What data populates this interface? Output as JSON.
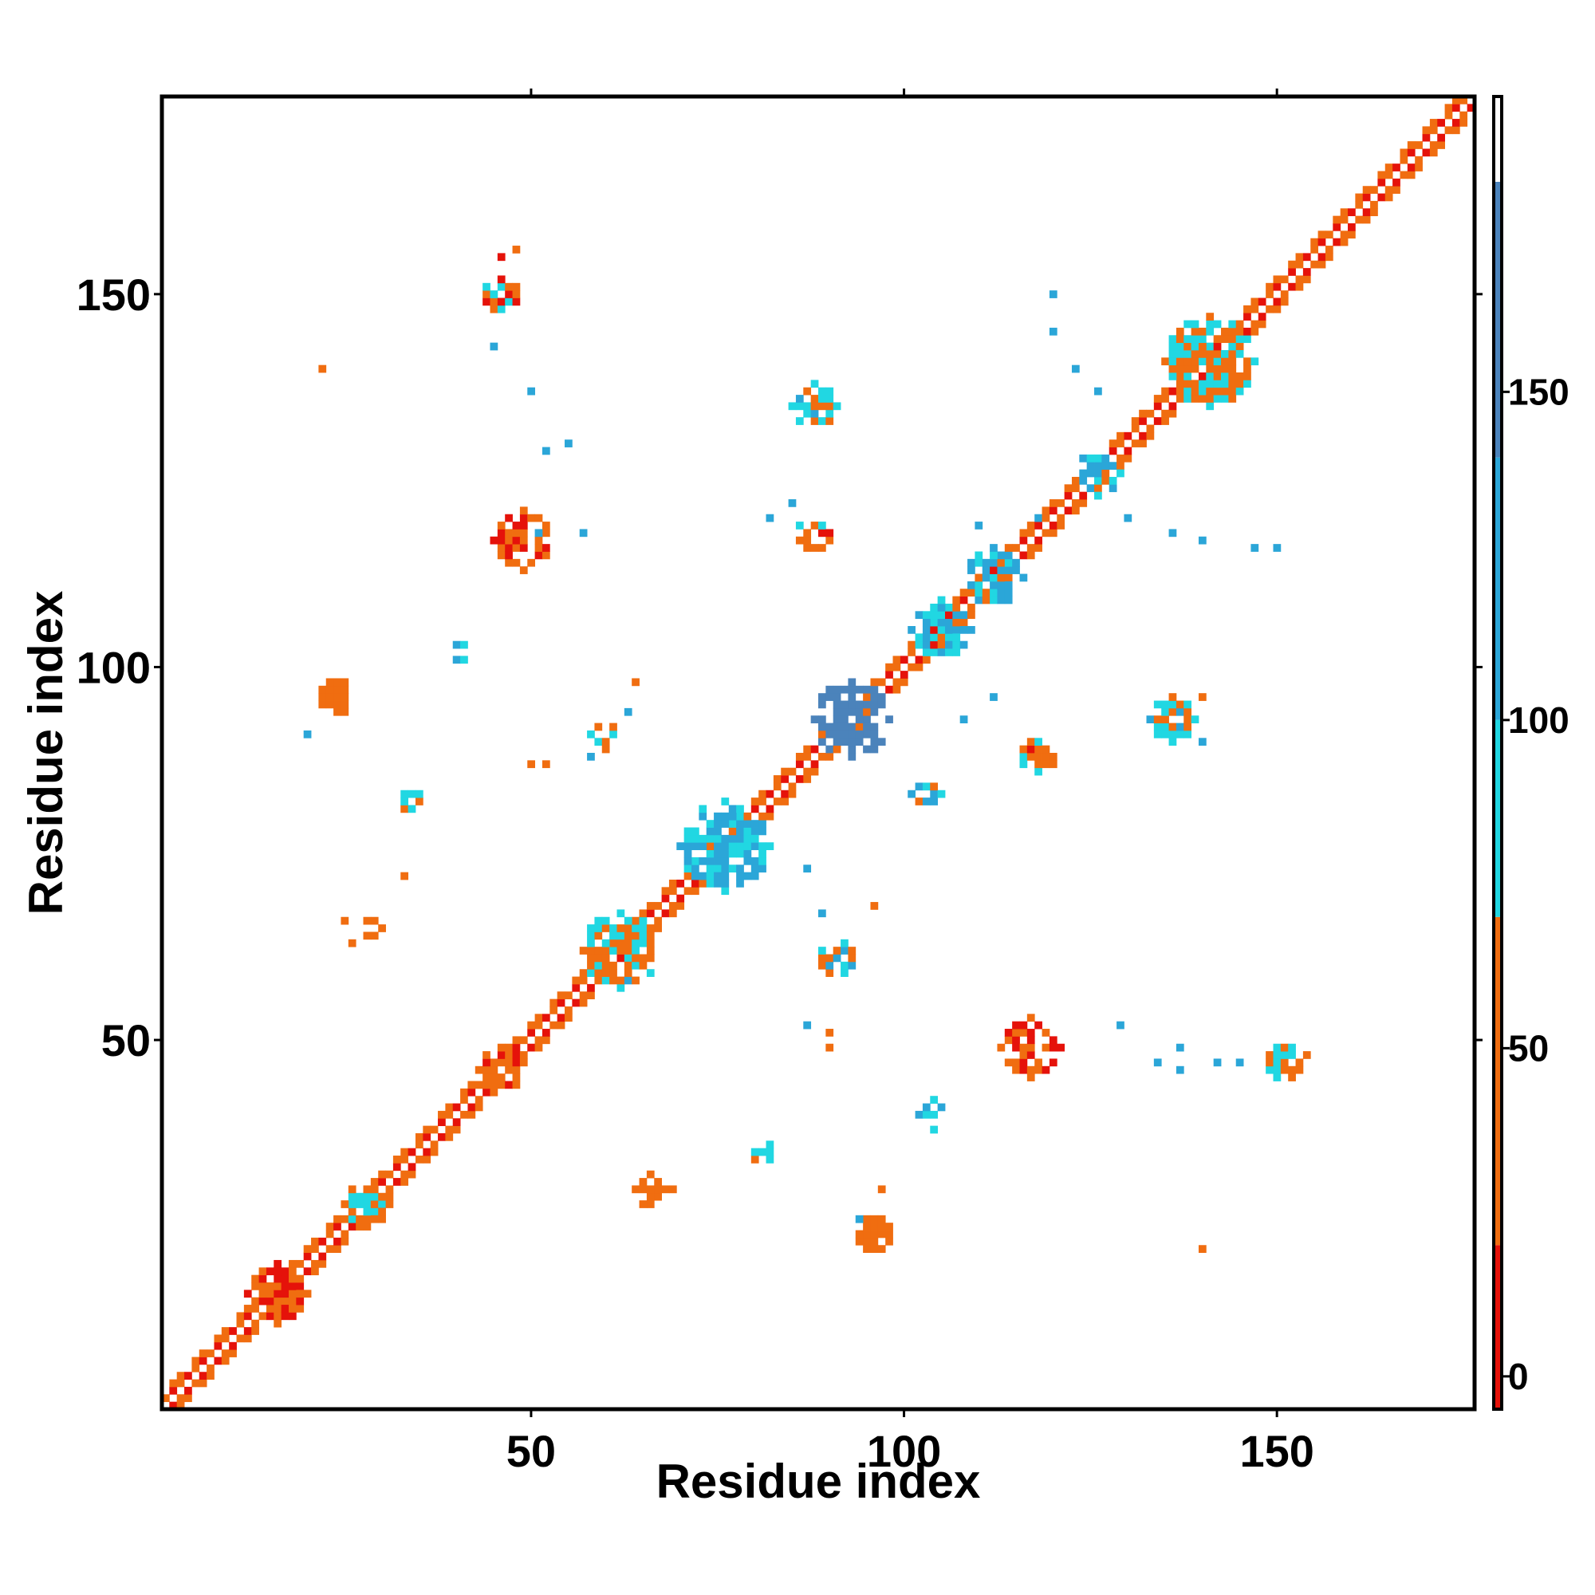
{
  "chart_data": {
    "type": "heatmap",
    "title": "",
    "xlabel": "Residue index",
    "ylabel": "Residue index",
    "xlim": [
      1,
      176
    ],
    "ylim": [
      1,
      176
    ],
    "xticks": [
      50,
      100,
      150
    ],
    "yticks": [
      50,
      100,
      150
    ],
    "grid": false,
    "colorbar": {
      "range": [
        -5,
        195
      ],
      "ticks": [
        0,
        50,
        100,
        150
      ],
      "bands": [
        {
          "from": -5,
          "to": 20,
          "color": "#e5120a"
        },
        {
          "from": 20,
          "to": 70,
          "color": "#f06d10"
        },
        {
          "from": 70,
          "to": 100,
          "color": "#21d7e2"
        },
        {
          "from": 100,
          "to": 140,
          "color": "#2ba6d8"
        },
        {
          "from": 140,
          "to": 182,
          "color": "#4b83bb"
        },
        {
          "from": 182,
          "to": 195,
          "color": "#ffffff"
        }
      ]
    },
    "diagonal": {
      "from": 1,
      "to": 176,
      "halfwidth": 2.5
    },
    "regions": [
      {
        "center": [
          16,
          16
        ],
        "radius": 4,
        "values": [
          5,
          40
        ]
      },
      {
        "center": [
          28,
          28
        ],
        "radius": 3,
        "values": [
          45,
          90
        ]
      },
      {
        "center": [
          46,
          46
        ],
        "radius": 3,
        "values": [
          10,
          40
        ]
      },
      {
        "center": [
          62,
          62
        ],
        "radius": 5,
        "values": [
          40,
          90
        ]
      },
      {
        "center": [
          76,
          76
        ],
        "radius": 6,
        "values": [
          90,
          120
        ]
      },
      {
        "center": [
          93,
          93
        ],
        "radius": 5,
        "values": [
          140,
          170
        ]
      },
      {
        "center": [
          105,
          105
        ],
        "radius": 4,
        "values": [
          80,
          120
        ]
      },
      {
        "center": [
          112,
          112
        ],
        "radius": 4,
        "values": [
          90,
          130
        ]
      },
      {
        "center": [
          126,
          126
        ],
        "radius": 3,
        "values": [
          90,
          120
        ]
      },
      {
        "center": [
          141,
          141
        ],
        "radius": 6,
        "values": [
          40,
          95
        ]
      },
      {
        "center": [
          49,
          117
        ],
        "radius": 4,
        "values": [
          5,
          40
        ]
      },
      {
        "center": [
          117,
          49
        ],
        "radius": 4,
        "values": [
          5,
          40
        ]
      },
      {
        "center": [
          88,
          118
        ],
        "radius": 2.5,
        "values": [
          10,
          80
        ]
      },
      {
        "center": [
          118,
          88
        ],
        "radius": 2.5,
        "values": [
          10,
          80
        ]
      },
      {
        "center": [
          88,
          135
        ],
        "radius": 3,
        "values": [
          60,
          110
        ]
      },
      {
        "center": [
          136,
          93
        ],
        "radius": 3,
        "values": [
          40,
          110
        ]
      },
      {
        "center": [
          24,
          96
        ],
        "radius": 2.5,
        "values": [
          25,
          55
        ]
      },
      {
        "center": [
          96,
          24
        ],
        "radius": 2.5,
        "values": [
          25,
          55
        ]
      },
      {
        "center": [
          40,
          102
        ],
        "radius": 1.5,
        "values": [
          80,
          120
        ]
      },
      {
        "center": [
          60,
          91
        ],
        "radius": 2,
        "values": [
          40,
          100
        ]
      },
      {
        "center": [
          29,
          65
        ],
        "radius": 1.5,
        "values": [
          30,
          60
        ]
      },
      {
        "center": [
          91,
          61
        ],
        "radius": 2.5,
        "values": [
          40,
          110
        ]
      },
      {
        "center": [
          66,
          30
        ],
        "radius": 2,
        "values": [
          30,
          60
        ]
      },
      {
        "center": [
          104,
          40
        ],
        "radius": 2,
        "values": [
          80,
          110
        ]
      },
      {
        "center": [
          46,
          150
        ],
        "radius": 2.5,
        "values": [
          10,
          100
        ]
      },
      {
        "center": [
          151,
          47
        ],
        "radius": 2.5,
        "values": [
          10,
          100
        ]
      },
      {
        "center": [
          103,
          83
        ],
        "radius": 2,
        "values": [
          60,
          120
        ]
      },
      {
        "center": [
          34,
          82
        ],
        "radius": 1.5,
        "values": [
          60,
          100
        ]
      },
      {
        "center": [
          81,
          35
        ],
        "radius": 1.5,
        "values": [
          60,
          100
        ]
      }
    ],
    "points": [
      [
        22,
        140,
        40
      ],
      [
        46,
        155,
        10
      ],
      [
        48,
        156,
        30
      ],
      [
        45,
        143,
        110
      ],
      [
        50,
        137,
        120
      ],
      [
        52,
        129,
        130
      ],
      [
        120,
        150,
        120
      ],
      [
        120,
        145,
        110
      ],
      [
        123,
        140,
        120
      ],
      [
        126,
        137,
        110
      ],
      [
        118,
        120,
        120
      ],
      [
        130,
        120,
        100
      ],
      [
        136,
        118,
        110
      ],
      [
        140,
        117,
        100
      ],
      [
        150,
        116,
        120
      ],
      [
        147,
        116,
        100
      ],
      [
        129,
        52,
        110
      ],
      [
        137,
        49,
        120
      ],
      [
        142,
        47,
        110
      ],
      [
        145,
        47,
        100
      ],
      [
        154,
        48,
        20
      ],
      [
        140,
        22,
        40
      ],
      [
        87,
        52,
        100
      ],
      [
        90,
        51,
        40
      ],
      [
        90,
        49,
        60
      ],
      [
        69,
        30,
        40
      ],
      [
        65,
        28,
        20
      ],
      [
        20,
        91,
        100
      ],
      [
        50,
        87,
        40
      ],
      [
        52,
        87,
        40
      ],
      [
        33,
        72,
        40
      ],
      [
        25,
        66,
        20
      ],
      [
        26,
        63,
        20
      ],
      [
        87,
        73,
        100
      ],
      [
        96,
        68,
        40
      ],
      [
        89,
        67,
        120
      ],
      [
        63,
        58,
        100
      ],
      [
        97,
        30,
        40
      ],
      [
        94,
        26,
        100
      ],
      [
        140,
        96,
        30
      ],
      [
        140,
        90,
        110
      ],
      [
        55,
        130,
        100
      ],
      [
        51,
        118,
        100
      ],
      [
        57,
        118,
        100
      ],
      [
        82,
        120,
        120
      ],
      [
        85,
        122,
        120
      ],
      [
        110,
        119,
        120
      ],
      [
        112,
        96,
        120
      ],
      [
        108,
        93,
        110
      ],
      [
        64,
        98,
        40
      ],
      [
        58,
        88,
        100
      ],
      [
        63,
        94,
        120
      ],
      [
        134,
        47,
        100
      ],
      [
        137,
        46,
        120
      ]
    ]
  }
}
